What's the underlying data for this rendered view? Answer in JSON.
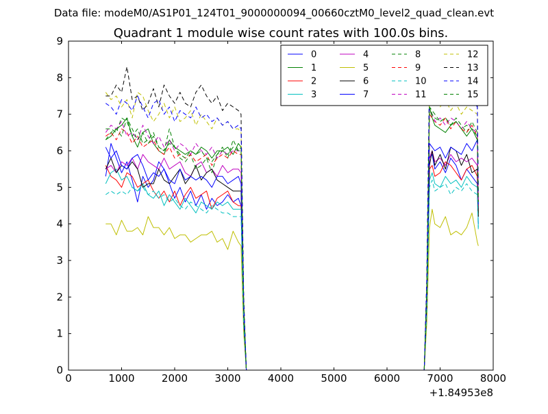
{
  "chart_data": {
    "type": "line",
    "suptitle": "Data file: modeM0/AS1P01_124T01_9000000094_00660cztM0_level2_quad_clean.evt",
    "title": "Quadrant 1 module wise count rates with 100.0s bins.",
    "xlabel": "",
    "ylabel": "",
    "x_offset_label": "+1.84953e8",
    "xlim": [
      0,
      8000
    ],
    "ylim": [
      0,
      9
    ],
    "xticks": [
      0,
      1000,
      2000,
      3000,
      4000,
      5000,
      6000,
      7000,
      8000
    ],
    "yticks": [
      0,
      1,
      2,
      3,
      4,
      5,
      6,
      7,
      8,
      9
    ],
    "grid": false,
    "legend": {
      "placement": "top-right",
      "columns": 4
    },
    "x": [
      700,
      800,
      900,
      1000,
      1100,
      1200,
      1300,
      1400,
      1500,
      1600,
      1700,
      1800,
      1900,
      2000,
      2100,
      2200,
      2300,
      2400,
      2500,
      2600,
      2700,
      2800,
      2900,
      3000,
      3100,
      3200,
      3250,
      3300,
      3350,
      6700,
      6750,
      6800,
      6850,
      6900,
      7000,
      7100,
      7200,
      7300,
      7400,
      7500,
      7600,
      7700,
      7720
    ],
    "series": [
      {
        "name": "0",
        "color": "#0000ff",
        "dash": "solid",
        "values": [
          5.3,
          6.2,
          5.8,
          5.4,
          5.7,
          5.2,
          4.6,
          5.3,
          5.0,
          5.2,
          5.7,
          5.5,
          5.1,
          4.7,
          5.0,
          4.6,
          4.9,
          4.5,
          4.8,
          4.4,
          4.7,
          4.5,
          4.6,
          4.8,
          4.6,
          4.7,
          4.5,
          1.4,
          0,
          0,
          1.9,
          5.8,
          5.9,
          5.5,
          5.7,
          5.4,
          5.8,
          5.6,
          5.2,
          5.5,
          5.3,
          5.1,
          4.0
        ]
      },
      {
        "name": "1",
        "color": "#008000",
        "dash": "solid",
        "values": [
          6.3,
          6.4,
          6.6,
          6.7,
          6.9,
          6.4,
          6.1,
          6.5,
          6.6,
          6.2,
          6.0,
          5.9,
          6.3,
          6.1,
          6.0,
          5.9,
          6.0,
          5.9,
          6.1,
          6.0,
          5.8,
          6.0,
          6.0,
          6.1,
          5.9,
          6.2,
          6.1,
          1.7,
          0,
          0,
          2.3,
          7.2,
          6.9,
          6.7,
          6.6,
          6.5,
          6.7,
          6.8,
          6.6,
          6.4,
          6.6,
          6.3,
          4.3
        ]
      },
      {
        "name": "2",
        "color": "#ff0000",
        "dash": "solid",
        "values": [
          5.6,
          5.3,
          5.2,
          5.0,
          5.4,
          5.3,
          5.0,
          5.1,
          5.2,
          4.9,
          4.7,
          4.9,
          4.6,
          4.9,
          4.5,
          4.8,
          5.0,
          4.7,
          4.8,
          4.9,
          4.4,
          4.7,
          4.8,
          4.9,
          4.6,
          4.5,
          4.5,
          1.4,
          0,
          0,
          1.8,
          5.5,
          5.6,
          5.3,
          5.4,
          5.7,
          5.6,
          5.4,
          5.2,
          5.5,
          5.6,
          5.3,
          4.2
        ]
      },
      {
        "name": "3",
        "color": "#00bfbf",
        "dash": "solid",
        "values": [
          5.1,
          5.4,
          5.5,
          5.2,
          5.3,
          5.0,
          4.9,
          5.1,
          4.8,
          4.7,
          4.9,
          4.5,
          4.8,
          4.6,
          4.4,
          4.7,
          4.5,
          4.3,
          4.6,
          4.5,
          4.4,
          4.6,
          4.5,
          4.6,
          4.4,
          4.4,
          4.4,
          1.3,
          0,
          0,
          1.7,
          5.2,
          5.4,
          5.1,
          5.0,
          5.3,
          5.1,
          5.2,
          5.0,
          5.3,
          5.1,
          5.0,
          3.9
        ]
      },
      {
        "name": "4",
        "color": "#bf00bf",
        "dash": "solid",
        "values": [
          5.5,
          5.6,
          5.4,
          5.7,
          5.6,
          5.8,
          5.5,
          5.9,
          5.7,
          5.6,
          5.5,
          5.8,
          5.5,
          5.6,
          5.7,
          5.4,
          5.3,
          5.6,
          5.7,
          5.4,
          5.5,
          5.3,
          5.6,
          5.4,
          5.5,
          5.5,
          5.4,
          1.5,
          0,
          0,
          1.9,
          5.8,
          6.0,
          5.7,
          5.8,
          5.6,
          5.9,
          5.7,
          5.8,
          5.7,
          5.8,
          5.6,
          4.4
        ]
      },
      {
        "name": "5",
        "color": "#bfbf00",
        "dash": "solid",
        "values": [
          4.0,
          4.0,
          3.7,
          4.1,
          3.8,
          3.8,
          3.9,
          3.7,
          4.2,
          3.9,
          3.9,
          3.7,
          3.9,
          3.6,
          3.7,
          3.7,
          3.5,
          3.6,
          3.7,
          3.7,
          3.8,
          3.5,
          3.6,
          3.3,
          3.8,
          3.5,
          3.4,
          1.0,
          0,
          0,
          1.3,
          3.9,
          4.4,
          4.0,
          3.9,
          4.2,
          3.7,
          3.8,
          3.7,
          3.9,
          4.3,
          3.5,
          3.4
        ]
      },
      {
        "name": "6",
        "color": "#000000",
        "dash": "solid",
        "values": [
          5.5,
          5.8,
          5.4,
          5.6,
          5.5,
          5.7,
          5.5,
          5.0,
          5.1,
          5.1,
          5.5,
          5.2,
          5.1,
          5.3,
          5.5,
          5.1,
          5.3,
          5.6,
          5.2,
          5.4,
          5.5,
          5.2,
          5.1,
          5.0,
          4.9,
          4.9,
          4.9,
          1.4,
          0,
          0,
          1.8,
          5.6,
          6.0,
          5.6,
          5.9,
          5.5,
          6.1,
          6.0,
          5.6,
          5.9,
          5.4,
          5.5,
          4.2
        ]
      },
      {
        "name": "7",
        "color": "#0000ff",
        "dash": "solid",
        "values": [
          6.1,
          5.8,
          6.0,
          5.6,
          5.5,
          5.8,
          5.9,
          5.6,
          5.2,
          5.4,
          5.3,
          5.5,
          5.2,
          5.1,
          5.5,
          5.2,
          5.3,
          5.2,
          5.3,
          5.2,
          5.0,
          5.3,
          5.3,
          5.1,
          5.2,
          5.3,
          5.1,
          1.5,
          0,
          0,
          2.0,
          6.2,
          6.1,
          6.0,
          6.1,
          5.8,
          6.1,
          6.0,
          5.9,
          6.2,
          6.0,
          6.3,
          4.5
        ]
      },
      {
        "name": "8",
        "color": "#008000",
        "dash": "dashed",
        "values": [
          6.6,
          6.6,
          6.5,
          6.9,
          6.8,
          6.4,
          6.6,
          6.2,
          6.3,
          6.5,
          6.1,
          6.0,
          6.6,
          6.1,
          5.8,
          5.7,
          5.9,
          5.5,
          5.6,
          5.8,
          5.4,
          5.9,
          6.1,
          5.8,
          6.3,
          6.0,
          6.1,
          1.8,
          0,
          0,
          2.3,
          7.2,
          7.1,
          7.0,
          6.8,
          6.9,
          6.7,
          6.9,
          6.7,
          6.5,
          6.8,
          6.5,
          4.6
        ]
      },
      {
        "name": "9",
        "color": "#ff0000",
        "dash": "dashed",
        "values": [
          6.4,
          6.5,
          6.3,
          6.6,
          6.5,
          6.2,
          6.4,
          6.1,
          6.2,
          6.3,
          6.0,
          5.9,
          6.1,
          5.8,
          5.9,
          5.8,
          5.9,
          5.7,
          5.8,
          5.9,
          5.6,
          5.8,
          5.9,
          5.8,
          6.0,
          5.9,
          5.9,
          1.7,
          0,
          0,
          2.2,
          7.0,
          6.9,
          6.8,
          6.7,
          6.9,
          6.6,
          6.8,
          6.6,
          6.5,
          6.7,
          6.4,
          4.5
        ]
      },
      {
        "name": "10",
        "color": "#00bfbf",
        "dash": "dashed",
        "values": [
          4.8,
          4.9,
          4.8,
          4.9,
          4.8,
          5.0,
          4.9,
          5.0,
          4.8,
          4.9,
          4.7,
          4.8,
          4.6,
          4.7,
          4.5,
          4.4,
          4.6,
          4.5,
          4.4,
          4.3,
          4.5,
          4.4,
          4.3,
          4.3,
          4.2,
          4.2,
          4.2,
          1.2,
          0,
          0,
          1.6,
          5.0,
          5.2,
          4.9,
          5.0,
          5.1,
          4.8,
          5.0,
          4.9,
          5.1,
          4.9,
          4.8,
          3.8
        ]
      },
      {
        "name": "11",
        "color": "#bf00bf",
        "dash": "dashed",
        "values": [
          6.5,
          6.7,
          6.6,
          6.8,
          6.4,
          6.5,
          6.3,
          6.7,
          6.4,
          6.2,
          6.4,
          6.1,
          6.3,
          6.0,
          6.2,
          6.1,
          5.9,
          6.2,
          6.0,
          5.9,
          6.1,
          5.8,
          6.0,
          5.9,
          6.0,
          6.0,
          6.0,
          1.8,
          0,
          0,
          2.2,
          7.1,
          7.0,
          6.8,
          6.9,
          6.7,
          6.9,
          6.8,
          6.6,
          6.8,
          6.6,
          6.5,
          4.6
        ]
      },
      {
        "name": "12",
        "color": "#bfbf00",
        "dash": "dashed",
        "values": [
          7.6,
          7.4,
          7.5,
          7.2,
          7.4,
          6.9,
          7.6,
          7.5,
          7.1,
          6.8,
          7.0,
          7.3,
          6.9,
          7.2,
          6.8,
          6.9,
          7.1,
          6.7,
          7.0,
          6.8,
          6.6,
          6.9,
          6.7,
          6.8,
          6.6,
          6.6,
          6.5,
          1.9,
          0,
          0,
          2.4,
          7.7,
          7.5,
          7.3,
          7.2,
          7.4,
          7.1,
          7.3,
          7.0,
          7.2,
          7.1,
          7.0,
          4.8
        ]
      },
      {
        "name": "13",
        "color": "#000000",
        "dash": "dashed",
        "values": [
          7.5,
          7.5,
          7.8,
          7.6,
          8.3,
          7.4,
          7.5,
          7.1,
          7.3,
          7.7,
          7.2,
          7.8,
          7.5,
          7.3,
          7.6,
          7.3,
          7.2,
          7.6,
          7.8,
          7.5,
          7.3,
          7.5,
          7.1,
          7.3,
          7.2,
          7.1,
          7.0,
          2.0,
          0,
          0,
          2.6,
          8.1,
          8.5,
          8.1,
          7.8,
          7.6,
          7.7,
          7.9,
          7.6,
          7.7,
          7.5,
          7.3,
          5.0
        ]
      },
      {
        "name": "14",
        "color": "#0000ff",
        "dash": "dashed",
        "values": [
          7.3,
          7.2,
          7.0,
          7.4,
          7.3,
          7.1,
          7.5,
          7.2,
          6.9,
          7.3,
          7.4,
          7.0,
          7.2,
          6.8,
          7.1,
          7.0,
          6.9,
          7.2,
          6.9,
          7.0,
          6.8,
          6.9,
          6.7,
          6.8,
          6.6,
          6.7,
          6.6,
          1.9,
          0,
          0,
          2.5,
          7.9,
          7.8,
          7.6,
          7.5,
          7.4,
          7.6,
          7.5,
          7.3,
          7.6,
          7.4,
          7.2,
          4.9
        ]
      },
      {
        "name": "15",
        "color": "#008000",
        "dash": "dashed",
        "values": [
          6.3,
          6.5,
          6.6,
          6.4,
          6.9,
          6.6,
          6.3,
          6.5,
          6.2,
          6.4,
          6.1,
          6.0,
          6.2,
          6.1,
          5.9,
          5.8,
          6.0,
          5.9,
          6.0,
          5.8,
          5.7,
          5.9,
          6.0,
          5.9,
          6.1,
          6.0,
          6.0,
          1.8,
          0,
          0,
          2.3,
          7.2,
          7.0,
          6.9,
          6.8,
          6.9,
          6.7,
          6.8,
          6.6,
          6.7,
          6.6,
          6.4,
          4.6
        ]
      }
    ]
  }
}
